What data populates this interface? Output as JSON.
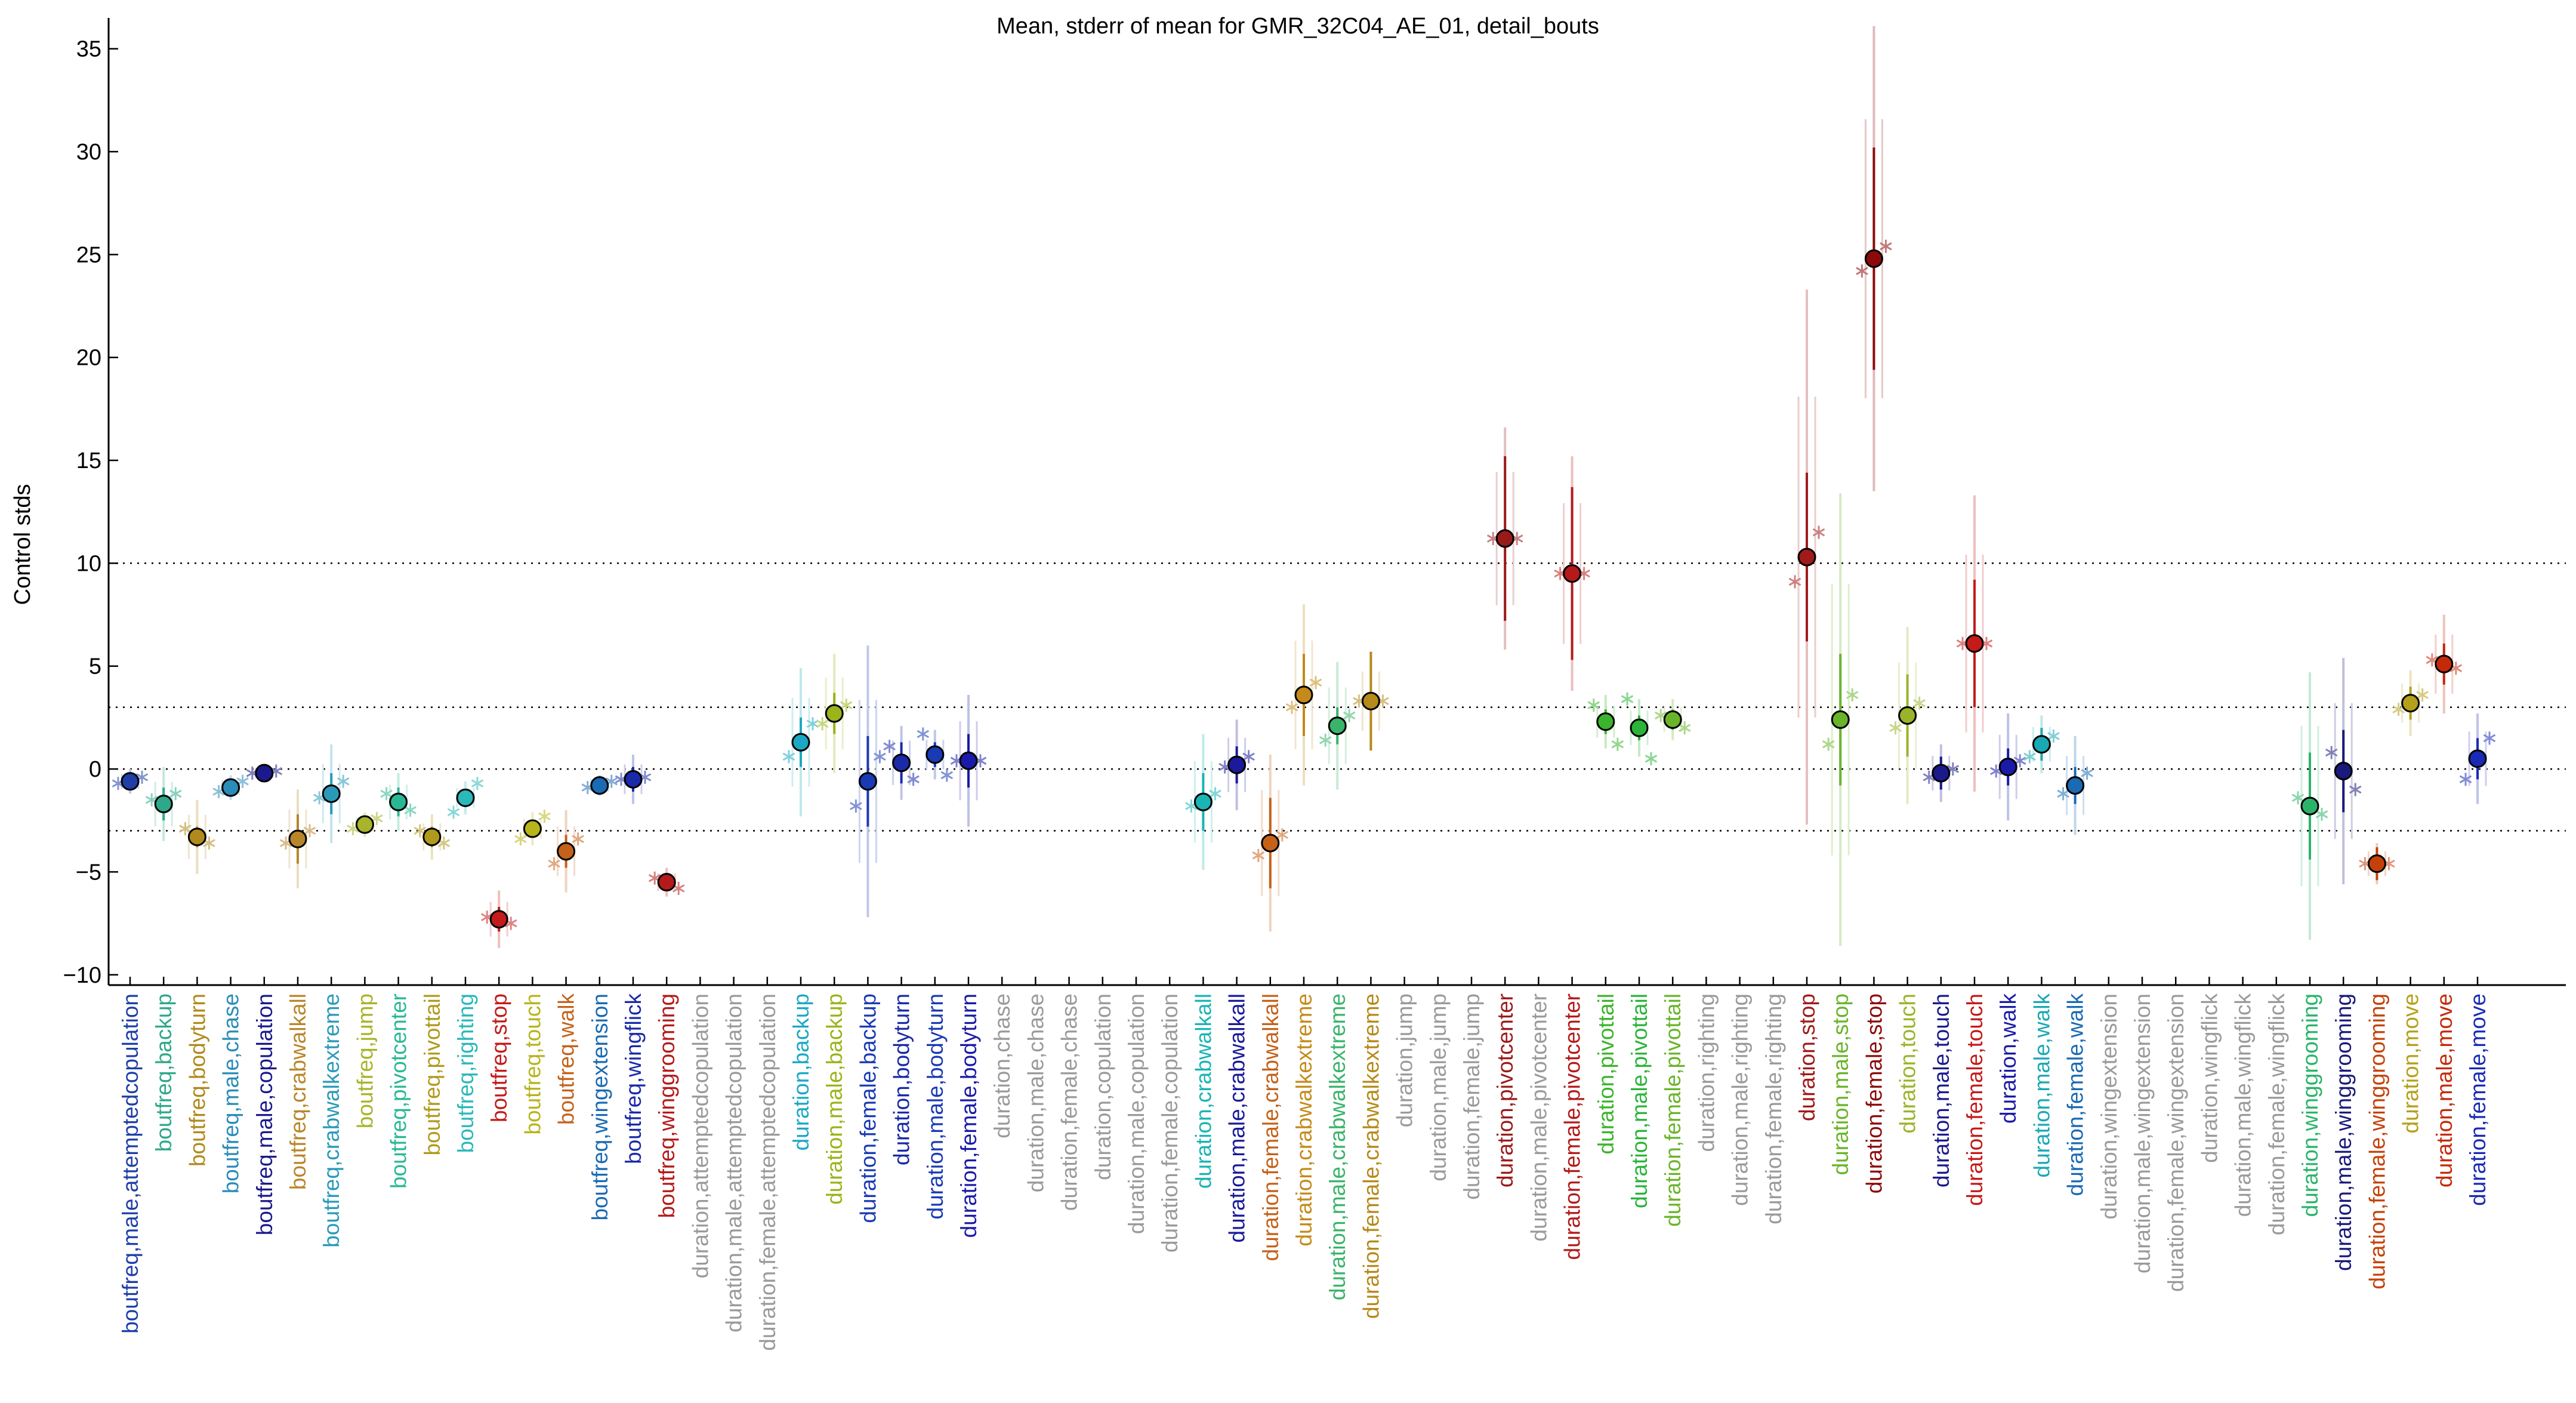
{
  "chart_data": {
    "type": "scatter",
    "title": "Mean, stderr of mean for GMR_32C04_AE_01, detail_bouts",
    "ylabel": "Control stds",
    "xlabel": "",
    "ylim": [
      -10.5,
      36.5
    ],
    "yticks": [
      -10,
      -5,
      0,
      5,
      10,
      15,
      20,
      25,
      30,
      35
    ],
    "reference_lines": [
      -3,
      0,
      3,
      10
    ],
    "grid": false,
    "legend": "none",
    "categories": [
      {
        "label": "boutfreq,male,attemptedcopulation",
        "color": "#1f3fa8",
        "mean": -0.6,
        "se": 0.3,
        "ext": 0.6,
        "side": [
          -0.7,
          -0.4
        ]
      },
      {
        "label": "boutfreq,backup",
        "color": "#2ea88a",
        "mean": -1.7,
        "se": 0.8,
        "ext": 1.8,
        "side": [
          -1.5,
          -1.2
        ]
      },
      {
        "label": "boutfreq,bodyturn",
        "color": "#b08a1c",
        "mean": -3.3,
        "se": 0.5,
        "ext": 1.8,
        "side": [
          -2.9,
          -3.6
        ]
      },
      {
        "label": "boutfreq,male,chase",
        "color": "#2a8cb8",
        "mean": -0.9,
        "se": 0.3,
        "ext": 0.6,
        "side": [
          -1.1,
          -0.6
        ]
      },
      {
        "label": "boutfreq,male,copulation",
        "color": "#1a1a8c",
        "mean": -0.2,
        "se": 0.2,
        "ext": 0.4,
        "side": [
          -0.2,
          -0.1
        ]
      },
      {
        "label": "boutfreq,crabwalkall",
        "color": "#b8862a",
        "mean": -3.4,
        "se": 1.2,
        "ext": 2.4,
        "side": [
          -3.6,
          -3.0
        ]
      },
      {
        "label": "boutfreq,crabwalkextreme",
        "color": "#2a9ab8",
        "mean": -1.2,
        "se": 1.0,
        "ext": 2.4,
        "side": [
          -1.4,
          -0.6
        ]
      },
      {
        "label": "boutfreq,jump",
        "color": "#a8b42a",
        "mean": -2.7,
        "se": 0.3,
        "ext": 0.6,
        "side": [
          -2.9,
          -2.4
        ]
      },
      {
        "label": "boutfreq,pivotcenter",
        "color": "#2ab894",
        "mean": -1.6,
        "se": 0.7,
        "ext": 1.4,
        "side": [
          -1.2,
          -2.0
        ]
      },
      {
        "label": "boutfreq,pivottail",
        "color": "#b09a1c",
        "mean": -3.3,
        "se": 0.5,
        "ext": 1.1,
        "side": [
          -3.0,
          -3.6
        ]
      },
      {
        "label": "boutfreq,righting",
        "color": "#2ab8b8",
        "mean": -1.4,
        "se": 0.4,
        "ext": 0.8,
        "side": [
          -2.1,
          -0.7
        ]
      },
      {
        "label": "boutfreq,stop",
        "color": "#c41a1a",
        "mean": -7.3,
        "se": 0.6,
        "ext": 1.4,
        "side": [
          -7.2,
          -7.5
        ]
      },
      {
        "label": "boutfreq,touch",
        "color": "#b8b41a",
        "mean": -2.9,
        "se": 0.4,
        "ext": 0.8,
        "side": [
          -3.4,
          -2.3
        ]
      },
      {
        "label": "boutfreq,walk",
        "color": "#c4621a",
        "mean": -4.0,
        "se": 0.8,
        "ext": 2.0,
        "side": [
          -4.6,
          -3.4
        ]
      },
      {
        "label": "boutfreq,wingextension",
        "color": "#1a6ab4",
        "mean": -0.8,
        "se": 0.2,
        "ext": 0.5,
        "side": [
          -0.9,
          -0.6
        ]
      },
      {
        "label": "boutfreq,wingflick",
        "color": "#1a2aa8",
        "mean": -0.5,
        "se": 0.6,
        "ext": 1.2,
        "side": [
          -0.5,
          -0.4
        ]
      },
      {
        "label": "boutfreq,winggrooming",
        "color": "#b41a1a",
        "mean": -5.5,
        "se": 0.3,
        "ext": 0.7,
        "side": [
          -5.3,
          -5.8
        ]
      },
      {
        "label": "duration,attemptedcopulation",
        "color": "#9a9a9a",
        "mean": null
      },
      {
        "label": "duration,male,attemptedcopulation",
        "color": "#9a9a9a",
        "mean": null
      },
      {
        "label": "duration,female,attemptedcopulation",
        "color": "#9a9a9a",
        "mean": null
      },
      {
        "label": "duration,backup",
        "color": "#1aa8c4",
        "mean": 1.3,
        "se": 1.2,
        "ext": 3.6,
        "side": [
          0.6,
          2.2
        ]
      },
      {
        "label": "duration,male,backup",
        "color": "#9ab41a",
        "mean": 2.7,
        "se": 1.0,
        "ext": 2.9,
        "side": [
          2.2,
          3.1
        ]
      },
      {
        "label": "duration,female,backup",
        "color": "#1a3ab4",
        "mean": -0.6,
        "se": 2.2,
        "ext": 6.6,
        "side": [
          -1.8,
          0.6
        ]
      },
      {
        "label": "duration,bodyturn",
        "color": "#1a2aa8",
        "mean": 0.3,
        "se": 1.0,
        "ext": 1.8,
        "side": [
          1.1,
          -0.5
        ]
      },
      {
        "label": "duration,male,bodyturn",
        "color": "#1a3ab4",
        "mean": 0.7,
        "se": 0.6,
        "ext": 1.2,
        "side": [
          1.7,
          -0.3
        ]
      },
      {
        "label": "duration,female,bodyturn",
        "color": "#1a1aa8",
        "mean": 0.4,
        "se": 1.3,
        "ext": 3.2,
        "side": [
          0.4,
          0.4
        ]
      },
      {
        "label": "duration,chase",
        "color": "#9a9a9a",
        "mean": null
      },
      {
        "label": "duration,male,chase",
        "color": "#9a9a9a",
        "mean": null
      },
      {
        "label": "duration,female,chase",
        "color": "#9a9a9a",
        "mean": null
      },
      {
        "label": "duration,copulation",
        "color": "#9a9a9a",
        "mean": null
      },
      {
        "label": "duration,male,copulation",
        "color": "#9a9a9a",
        "mean": null
      },
      {
        "label": "duration,female,copulation",
        "color": "#9a9a9a",
        "mean": null
      },
      {
        "label": "duration,crabwalkall",
        "color": "#1ab4b4",
        "mean": -1.6,
        "se": 1.4,
        "ext": 3.3,
        "side": [
          -1.8,
          -1.2
        ]
      },
      {
        "label": "duration,male,crabwalkall",
        "color": "#1a1a9a",
        "mean": 0.2,
        "se": 0.9,
        "ext": 2.2,
        "side": [
          0.1,
          0.6
        ]
      },
      {
        "label": "duration,female,crabwalkall",
        "color": "#c4621a",
        "mean": -3.6,
        "se": 2.2,
        "ext": 4.3,
        "side": [
          -4.2,
          -3.2
        ]
      },
      {
        "label": "duration,crabwalkextreme",
        "color": "#c48a1a",
        "mean": 3.6,
        "se": 2.0,
        "ext": 4.4,
        "side": [
          3.0,
          4.2
        ]
      },
      {
        "label": "duration,male,crabwalkextreme",
        "color": "#3ab46a",
        "mean": 2.1,
        "se": 0.9,
        "ext": 3.1,
        "side": [
          1.4,
          2.6
        ]
      },
      {
        "label": "duration,female,crabwalkextreme",
        "color": "#b48a1a",
        "mean": 3.3,
        "se": 2.4,
        "ext": 2.4,
        "side": [
          3.3,
          3.3
        ]
      },
      {
        "label": "duration,jump",
        "color": "#9a9a9a",
        "mean": null
      },
      {
        "label": "duration,male,jump",
        "color": "#9a9a9a",
        "mean": null
      },
      {
        "label": "duration,female,jump",
        "color": "#9a9a9a",
        "mean": null
      },
      {
        "label": "duration,pivotcenter",
        "color": "#9a1a1a",
        "mean": 11.2,
        "se": 4.0,
        "ext": 5.4,
        "side": [
          11.2,
          11.2
        ]
      },
      {
        "label": "duration,male,pivotcenter",
        "color": "#9a9a9a",
        "mean": null
      },
      {
        "label": "duration,female,pivotcenter",
        "color": "#b41a1a",
        "mean": 9.5,
        "se": 4.2,
        "ext": 5.7,
        "side": [
          9.5,
          9.5
        ]
      },
      {
        "label": "duration,pivottail",
        "color": "#3ab42a",
        "mean": 2.3,
        "se": 0.6,
        "ext": 1.3,
        "side": [
          3.1,
          1.2
        ]
      },
      {
        "label": "duration,male,pivottail",
        "color": "#2ab43a",
        "mean": 2.0,
        "se": 0.6,
        "ext": 1.4,
        "side": [
          3.4,
          0.5
        ]
      },
      {
        "label": "duration,female,pivottail",
        "color": "#6ab42a",
        "mean": 2.4,
        "se": 0.5,
        "ext": 1.0,
        "side": [
          2.6,
          2.0
        ]
      },
      {
        "label": "duration,righting",
        "color": "#9a9a9a",
        "mean": null
      },
      {
        "label": "duration,male,righting",
        "color": "#9a9a9a",
        "mean": null
      },
      {
        "label": "duration,female,righting",
        "color": "#9a9a9a",
        "mean": null
      },
      {
        "label": "duration,stop",
        "color": "#a01a1a",
        "mean": 10.3,
        "se": 4.1,
        "ext": 13.0,
        "side": [
          9.1,
          11.5
        ]
      },
      {
        "label": "duration,male,stop",
        "color": "#6ab42a",
        "mean": 2.4,
        "se": 3.2,
        "ext": 11.0,
        "side": [
          1.2,
          3.6
        ]
      },
      {
        "label": "duration,female,stop",
        "color": "#8c0a0a",
        "mean": 24.8,
        "se": 5.4,
        "ext": 11.3,
        "side": [
          24.2,
          25.4
        ]
      },
      {
        "label": "duration,touch",
        "color": "#9ab42a",
        "mean": 2.6,
        "se": 2.0,
        "ext": 4.3,
        "side": [
          2.0,
          3.2
        ]
      },
      {
        "label": "duration,male,touch",
        "color": "#1a1a8c",
        "mean": -0.2,
        "se": 0.8,
        "ext": 1.4,
        "side": [
          -0.4,
          0.0
        ]
      },
      {
        "label": "duration,female,touch",
        "color": "#c41a1a",
        "mean": 6.1,
        "se": 3.1,
        "ext": 7.2,
        "side": [
          6.1,
          6.1
        ]
      },
      {
        "label": "duration,walk",
        "color": "#1a1aa8",
        "mean": 0.1,
        "se": 0.9,
        "ext": 2.6,
        "side": [
          -0.1,
          0.4
        ]
      },
      {
        "label": "duration,male,walk",
        "color": "#1aa8b4",
        "mean": 1.2,
        "se": 0.8,
        "ext": 1.4,
        "side": [
          0.6,
          1.6
        ]
      },
      {
        "label": "duration,female,walk",
        "color": "#1a6ab4",
        "mean": -0.8,
        "se": 0.9,
        "ext": 2.4,
        "side": [
          -1.2,
          -0.2
        ]
      },
      {
        "label": "duration,wingextension",
        "color": "#9a9a9a",
        "mean": null
      },
      {
        "label": "duration,male,wingextension",
        "color": "#9a9a9a",
        "mean": null
      },
      {
        "label": "duration,female,wingextension",
        "color": "#9a9a9a",
        "mean": null
      },
      {
        "label": "duration,wingflick",
        "color": "#9a9a9a",
        "mean": null
      },
      {
        "label": "duration,male,wingflick",
        "color": "#9a9a9a",
        "mean": null
      },
      {
        "label": "duration,female,wingflick",
        "color": "#9a9a9a",
        "mean": null
      },
      {
        "label": "duration,winggrooming",
        "color": "#2ab46a",
        "mean": -1.8,
        "se": 2.6,
        "ext": 6.5,
        "side": [
          -1.4,
          -2.2
        ]
      },
      {
        "label": "duration,male,winggrooming",
        "color": "#1a1a7a",
        "mean": -0.1,
        "se": 2.0,
        "ext": 5.5,
        "side": [
          0.8,
          -1.0
        ]
      },
      {
        "label": "duration,female,winggrooming",
        "color": "#c4420a",
        "mean": -4.6,
        "se": 0.8,
        "ext": 1.0,
        "side": [
          -4.6,
          -4.6
        ]
      },
      {
        "label": "duration,move",
        "color": "#b4a01a",
        "mean": 3.2,
        "se": 0.8,
        "ext": 1.6,
        "side": [
          2.9,
          3.6
        ]
      },
      {
        "label": "duration,male,move",
        "color": "#c42a0a",
        "mean": 5.1,
        "se": 1.0,
        "ext": 2.4,
        "side": [
          5.3,
          4.9
        ]
      },
      {
        "label": "duration,female,move",
        "color": "#1a2ab4",
        "mean": 0.5,
        "se": 1.0,
        "ext": 2.2,
        "side": [
          -0.5,
          1.5
        ]
      }
    ]
  }
}
